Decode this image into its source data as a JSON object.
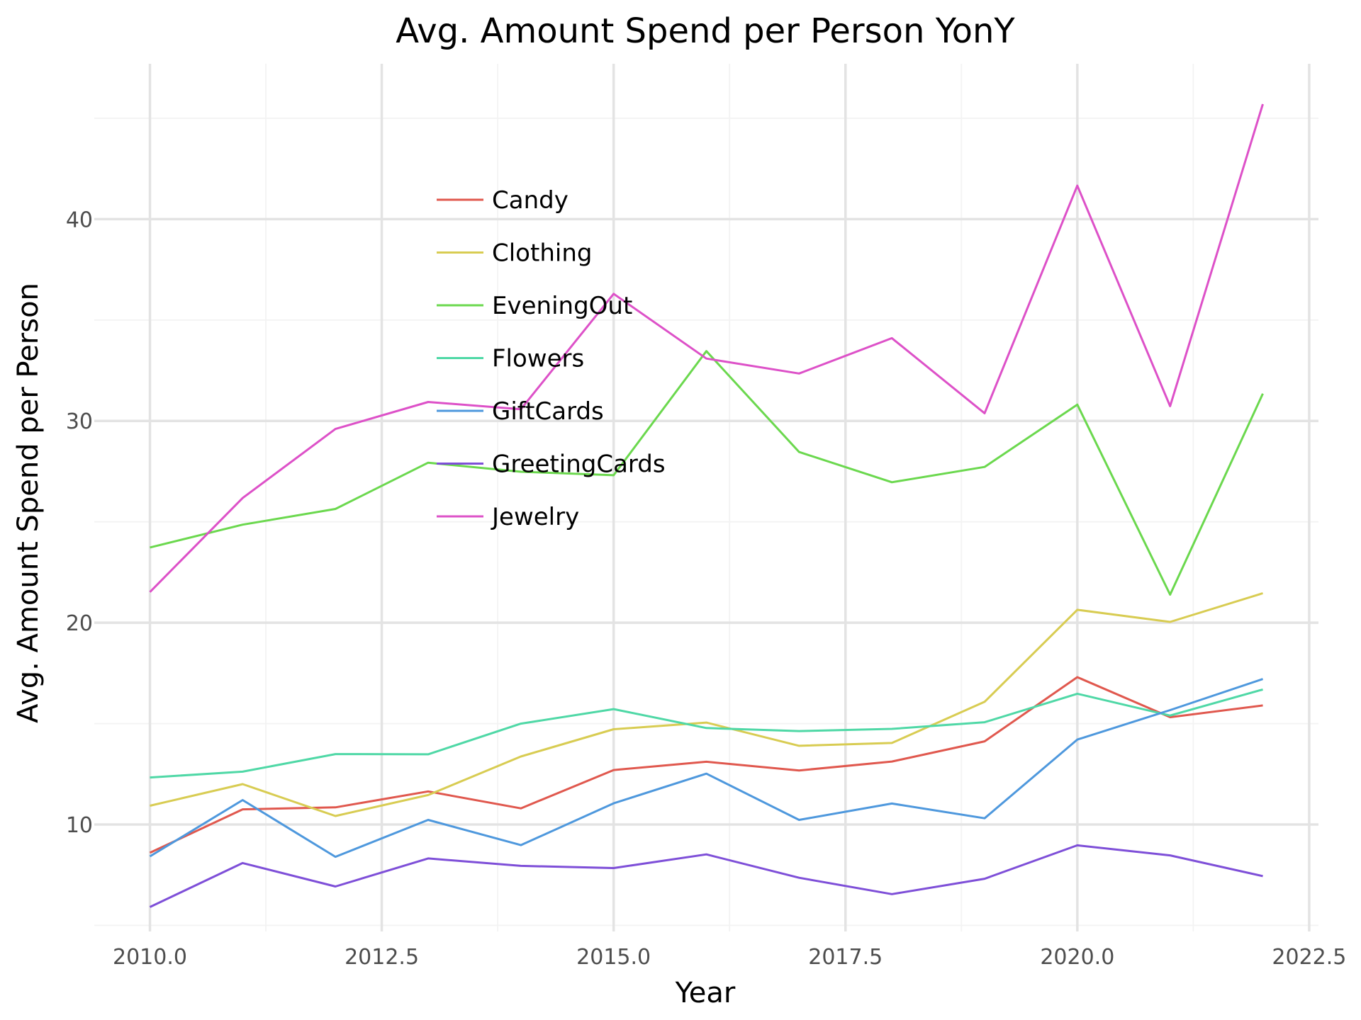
{
  "chart_data": {
    "type": "line",
    "title": "Avg. Amount Spend per Person YonY",
    "xlabel": "Year",
    "ylabel": "Avg. Amount Spend per Person",
    "x": [
      2010,
      2011,
      2012,
      2013,
      2014,
      2015,
      2016,
      2017,
      2018,
      2019,
      2020,
      2021,
      2022
    ],
    "xlim": [
      2009.4,
      2022.6
    ],
    "ylim": [
      4.7,
      47.7
    ],
    "x_ticks": [
      2010.0,
      2012.5,
      2015.0,
      2017.5,
      2020.0,
      2022.5
    ],
    "x_tick_labels": [
      "2010.0",
      "2012.5",
      "2015.0",
      "2017.5",
      "2020.0",
      "2022.5"
    ],
    "y_ticks": [
      10,
      20,
      30,
      40
    ],
    "y_tick_labels": [
      "10",
      "20",
      "30",
      "40"
    ],
    "grid": true,
    "legend_position": "inside-upper-center",
    "series": [
      {
        "name": "Candy",
        "color": "#e0584e",
        "values": [
          8.6,
          10.75,
          10.85,
          11.64,
          10.8,
          12.7,
          13.11,
          12.68,
          13.12,
          14.12,
          17.3,
          15.32,
          15.9
        ]
      },
      {
        "name": "Clothing",
        "color": "#d8cc52",
        "values": [
          10.93,
          12.0,
          10.42,
          11.46,
          13.37,
          14.72,
          15.05,
          13.9,
          14.04,
          16.08,
          20.64,
          20.04,
          21.46
        ]
      },
      {
        "name": "EveningOut",
        "color": "#6bd84e",
        "values": [
          23.73,
          24.86,
          25.64,
          27.93,
          27.48,
          27.31,
          33.46,
          28.46,
          26.96,
          27.72,
          30.81,
          21.39,
          31.35
        ]
      },
      {
        "name": "Flowers",
        "color": "#4fd8a6",
        "values": [
          12.33,
          12.62,
          13.49,
          13.48,
          15.0,
          15.72,
          14.78,
          14.63,
          14.74,
          15.07,
          16.48,
          15.4,
          16.69
        ]
      },
      {
        "name": "GiftCards",
        "color": "#4e98dd",
        "values": [
          8.42,
          11.21,
          8.4,
          10.23,
          8.98,
          11.05,
          12.52,
          10.23,
          11.04,
          10.31,
          14.21,
          15.67,
          17.21
        ]
      },
      {
        "name": "GreetingCards",
        "color": "#7e4fd8",
        "values": [
          5.91,
          8.09,
          6.93,
          8.32,
          7.95,
          7.84,
          8.52,
          7.36,
          6.55,
          7.31,
          8.97,
          8.47,
          7.44
        ]
      },
      {
        "name": "Jewelry",
        "color": "#dd51c8",
        "values": [
          21.52,
          26.18,
          29.6,
          30.94,
          30.58,
          36.3,
          33.09,
          32.35,
          34.1,
          30.38,
          41.66,
          30.73,
          45.7
        ]
      }
    ]
  }
}
